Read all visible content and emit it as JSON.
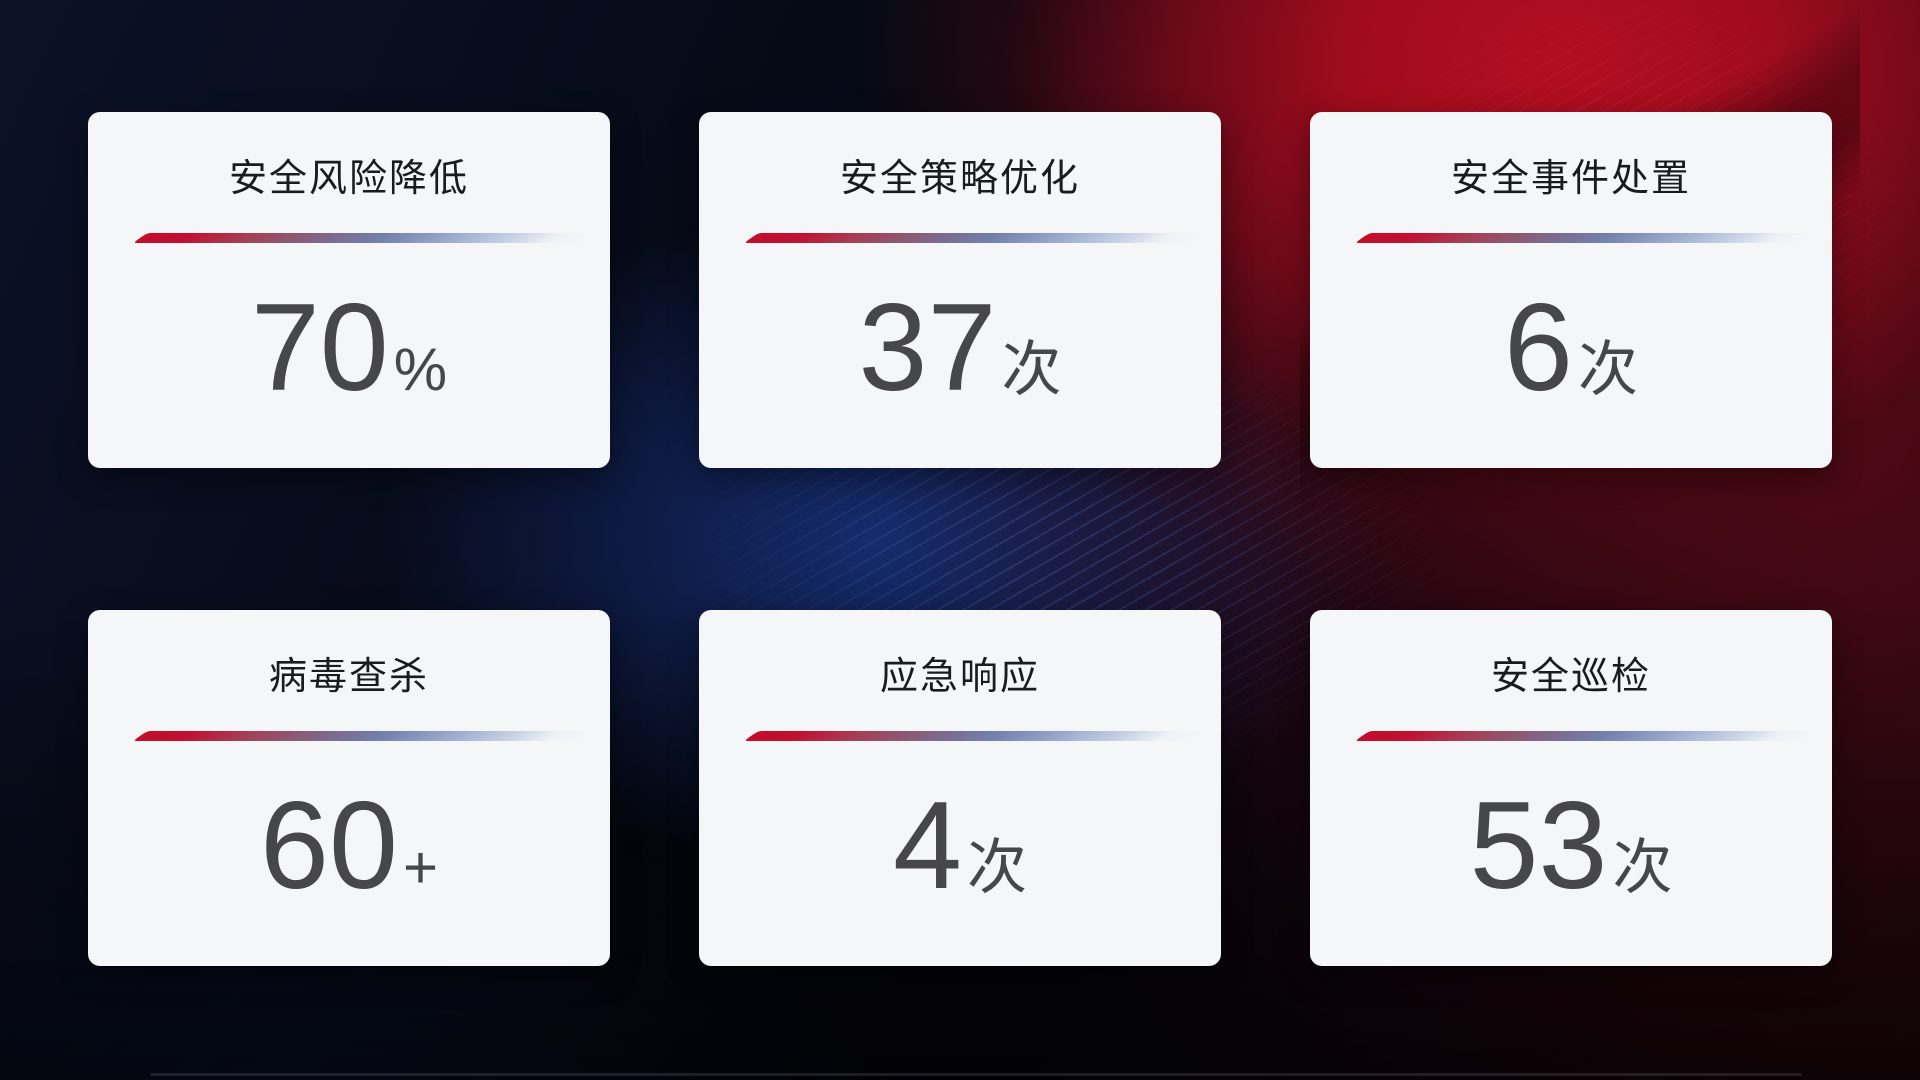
{
  "cards": [
    {
      "title": "安全风险降低",
      "value": "70",
      "unit": "%"
    },
    {
      "title": "安全策略优化",
      "value": "37",
      "unit": "次"
    },
    {
      "title": "安全事件处置",
      "value": "6",
      "unit": "次"
    },
    {
      "title": "病毒查杀",
      "value": "60",
      "unit": "+"
    },
    {
      "title": "应急响应",
      "value": "4",
      "unit": "次"
    },
    {
      "title": "安全巡检",
      "value": "53",
      "unit": "次"
    }
  ],
  "colors": {
    "card_background": "#f5f6f8",
    "title_text": "#1a1b1e",
    "value_text": "#47474a",
    "accent_line_start": "#c30e2e",
    "accent_line_mid": "#7381ad",
    "accent_line_end": "#e9edf4",
    "background_navy": "#0b1227",
    "background_black": "#050811",
    "background_red_glow": "#a00c1d",
    "background_blue_glow": "#18327d"
  }
}
